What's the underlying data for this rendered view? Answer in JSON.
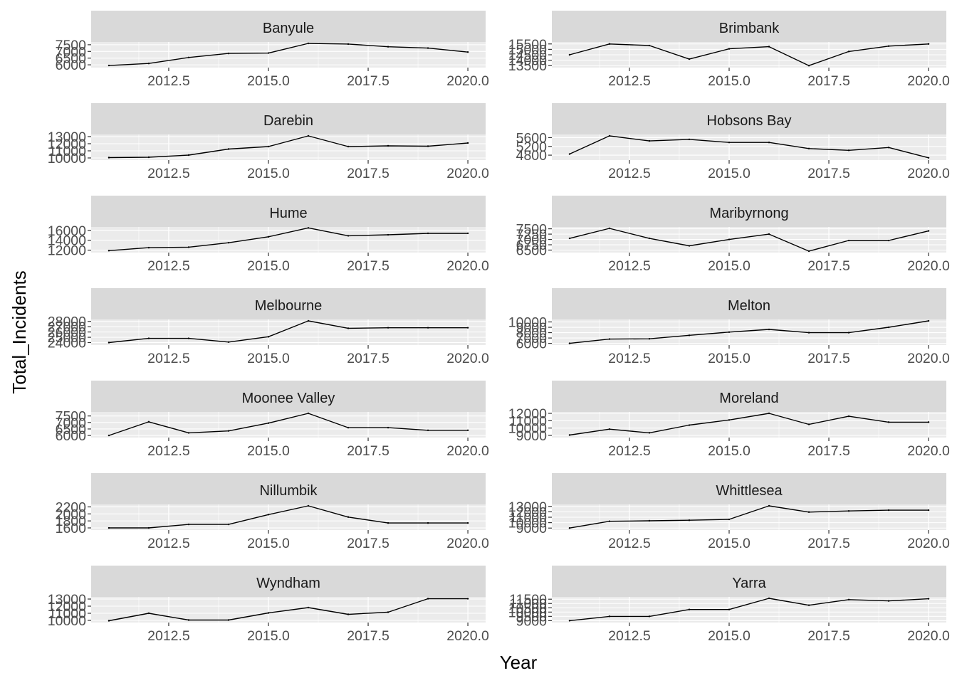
{
  "chart_data": {
    "type": "line",
    "layout": "facet-wrap-2-columns",
    "xlabel": "Year",
    "ylabel": "Total_Incidents",
    "x": [
      2011,
      2012,
      2013,
      2014,
      2015,
      2016,
      2017,
      2018,
      2019,
      2020
    ],
    "x_ticks": [
      2012.5,
      2015.0,
      2017.5,
      2020.0
    ],
    "x_tick_labels": [
      "2012.5",
      "2015.0",
      "2017.5",
      "2020.0"
    ],
    "xlim": [
      2011,
      2020
    ],
    "grid": true,
    "colors": {
      "panel_background": "#ebebeb",
      "strip_background": "#d9d9d9",
      "grid": "#ffffff",
      "line": "#000000"
    },
    "panels": [
      {
        "name": "Banyule",
        "y_ticks": [
          6000,
          6500,
          7000,
          7500
        ],
        "ylim": [
          5900,
          7600
        ],
        "values": [
          5950,
          6100,
          6550,
          6850,
          6880,
          7600,
          7550,
          7350,
          7250,
          6950
        ]
      },
      {
        "name": "Brimbank",
        "y_ticks": [
          13500,
          14000,
          14500,
          15000,
          15500
        ],
        "ylim": [
          13450,
          15550
        ],
        "values": [
          14500,
          15500,
          15350,
          14100,
          15050,
          15250,
          13500,
          14800,
          15300,
          15500
        ]
      },
      {
        "name": "Darebin",
        "y_ticks": [
          10000,
          11000,
          12000,
          13000
        ],
        "ylim": [
          9900,
          13100
        ],
        "values": [
          10050,
          10100,
          10400,
          11250,
          11600,
          13100,
          11600,
          11700,
          11650,
          12100
        ]
      },
      {
        "name": "Hobsons Bay",
        "y_ticks": [
          4800,
          5200,
          5600
        ],
        "ylim": [
          4640,
          5680
        ],
        "values": [
          4850,
          5680,
          5450,
          5520,
          5380,
          5380,
          5100,
          5020,
          5150,
          4680
        ]
      },
      {
        "name": "Hume",
        "y_ticks": [
          12000,
          14000,
          16000
        ],
        "ylim": [
          11800,
          16400
        ],
        "values": [
          11900,
          12500,
          12600,
          13500,
          14700,
          16500,
          14900,
          15100,
          15400,
          15400
        ]
      },
      {
        "name": "Maribyrnong",
        "y_ticks": [
          6500,
          6750,
          7000,
          7250,
          7500
        ],
        "ylim": [
          6450,
          7520
        ],
        "values": [
          7050,
          7520,
          7050,
          6700,
          7000,
          7250,
          6450,
          6950,
          6950,
          7400
        ]
      },
      {
        "name": "Melbourne",
        "y_ticks": [
          24000,
          25000,
          26000,
          27000,
          28000
        ],
        "ylim": [
          23800,
          28100
        ],
        "values": [
          24000,
          24800,
          24800,
          24100,
          25100,
          28100,
          26700,
          26800,
          26800,
          26800
        ]
      },
      {
        "name": "Melton",
        "y_ticks": [
          6000,
          7000,
          8000,
          9000,
          10000
        ],
        "ylim": [
          5950,
          10200
        ],
        "values": [
          6000,
          6800,
          6850,
          7500,
          8100,
          8600,
          8000,
          8000,
          9000,
          10200
        ]
      },
      {
        "name": "Moonee Valley",
        "y_ticks": [
          6000,
          6500,
          7000,
          7500
        ],
        "ylim": [
          5950,
          7700
        ],
        "values": [
          6000,
          7050,
          6200,
          6350,
          6950,
          7700,
          6600,
          6600,
          6400,
          6400
        ]
      },
      {
        "name": "Moreland",
        "y_ticks": [
          9000,
          10000,
          11000,
          12000
        ],
        "ylim": [
          8900,
          12000
        ],
        "values": [
          9050,
          9850,
          9350,
          10400,
          11100,
          12000,
          10500,
          11600,
          10800,
          10800
        ]
      },
      {
        "name": "Nillumbik",
        "y_ticks": [
          1600,
          1800,
          2000,
          2200
        ],
        "ylim": [
          1580,
          2230
        ],
        "values": [
          1600,
          1600,
          1700,
          1700,
          1980,
          2230,
          1910,
          1740,
          1740,
          1740
        ]
      },
      {
        "name": "Whittlesea",
        "y_ticks": [
          9000,
          10000,
          11000,
          12000,
          13000
        ],
        "ylim": [
          8900,
          13100
        ],
        "values": [
          9000,
          10250,
          10350,
          10450,
          10600,
          13100,
          11950,
          12150,
          12300,
          12300
        ]
      },
      {
        "name": "Wyndham",
        "y_ticks": [
          10000,
          11000,
          12000,
          13000
        ],
        "ylim": [
          9900,
          13100
        ],
        "values": [
          9950,
          11000,
          10050,
          10050,
          11050,
          11800,
          10850,
          11150,
          13050,
          13050
        ]
      },
      {
        "name": "Yarra",
        "y_ticks": [
          9000,
          9500,
          10000,
          10500,
          11000,
          11500
        ],
        "ylim": [
          8950,
          11600
        ],
        "values": [
          9000,
          9500,
          9500,
          10300,
          10300,
          11600,
          10800,
          11450,
          11300,
          11550
        ]
      }
    ]
  }
}
